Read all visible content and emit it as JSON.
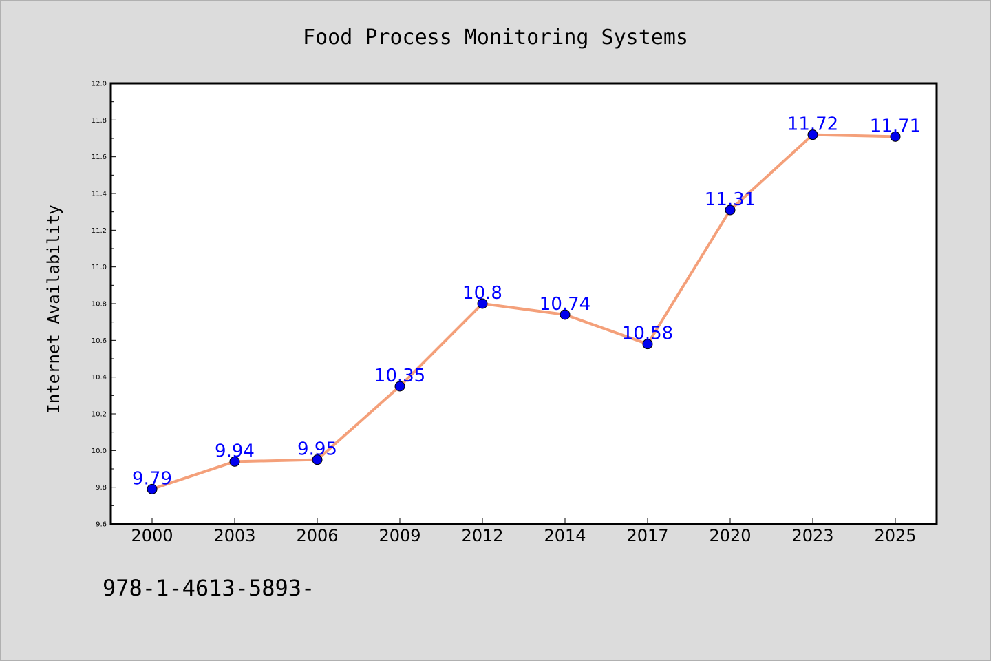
{
  "chart_data": {
    "type": "line",
    "title": "Food Process Monitoring Systems",
    "xlabel": "",
    "ylabel": "Internet Availability",
    "categories": [
      "2000",
      "2003",
      "2006",
      "2009",
      "2012",
      "2014",
      "2017",
      "2020",
      "2023",
      "2025"
    ],
    "series": [
      {
        "values": [
          9.79,
          9.94,
          9.95,
          10.35,
          10.8,
          10.74,
          10.58,
          11.31,
          11.72,
          11.71
        ]
      }
    ],
    "ylim": [
      9.6,
      12.0
    ],
    "yticks": [
      "9.6",
      "9.8",
      "10.0",
      "10.2",
      "10.4",
      "10.6",
      "10.8",
      "11.0",
      "11.2",
      "11.4",
      "11.6",
      "11.8",
      "12.0"
    ],
    "data_labels": [
      "9.79",
      "9.94",
      "9.95",
      "10.35",
      "10.8",
      "10.74",
      "10.58",
      "11.31",
      "11.72",
      "11.71"
    ],
    "grid": false,
    "legend": "none",
    "colors": {
      "line": "#f4a07a",
      "marker": "#0000ee",
      "label": "#0000ff",
      "background": "#dcdcdc",
      "plot_area": "#ffffff"
    }
  },
  "footer": {
    "text": "978-1-4613-5893-"
  }
}
